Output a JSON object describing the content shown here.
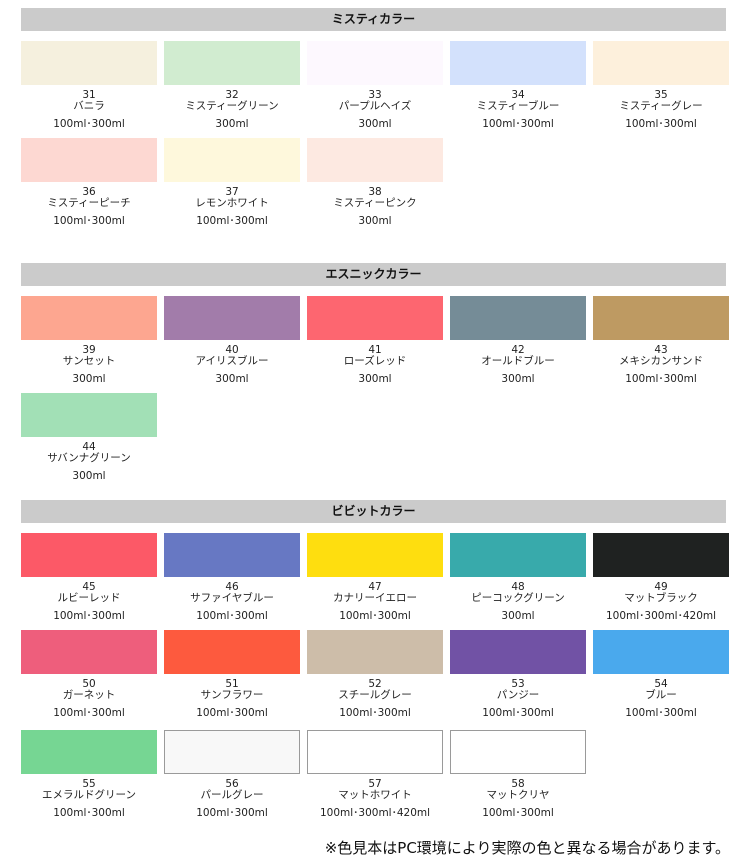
{
  "sections": [
    {
      "title": "ミスティカラー",
      "items": [
        {
          "number": "31",
          "name": "バニラ",
          "sizes": "100ml･300ml",
          "color": "#f5f0de"
        },
        {
          "number": "32",
          "name": "ミスティーグリーン",
          "sizes": "300ml",
          "color": "#d1ecd0"
        },
        {
          "number": "33",
          "name": "パープルヘイズ",
          "sizes": "300ml",
          "color": "#fdf8fe"
        },
        {
          "number": "34",
          "name": "ミスティーブルー",
          "sizes": "100ml･300ml",
          "color": "#d3e1fc"
        },
        {
          "number": "35",
          "name": "ミスティーグレー",
          "sizes": "100ml･300ml",
          "color": "#fdf0dc"
        },
        {
          "number": "36",
          "name": "ミスティーピーチ",
          "sizes": "100ml･300ml",
          "color": "#fdd8d2"
        },
        {
          "number": "37",
          "name": "レモンホワイト",
          "sizes": "100ml･300ml",
          "color": "#fef8dc"
        },
        {
          "number": "38",
          "name": "ミスティーピンク",
          "sizes": "300ml",
          "color": "#fde9e1"
        }
      ]
    },
    {
      "title": "エスニックカラー",
      "items": [
        {
          "number": "39",
          "name": "サンセット",
          "sizes": "300ml",
          "color": "#fda690"
        },
        {
          "number": "40",
          "name": "アイリスブルー",
          "sizes": "300ml",
          "color": "#a27caa"
        },
        {
          "number": "41",
          "name": "ローズレッド",
          "sizes": "300ml",
          "color": "#fd6670"
        },
        {
          "number": "42",
          "name": "オールドブルー",
          "sizes": "300ml",
          "color": "#758c97"
        },
        {
          "number": "43",
          "name": "メキシカンサンド",
          "sizes": "100ml･300ml",
          "color": "#be9a62"
        },
        {
          "number": "44",
          "name": "サバンナグリーン",
          "sizes": "300ml",
          "color": "#a2e0b6"
        }
      ]
    },
    {
      "title": "ビビットカラー",
      "items": [
        {
          "number": "45",
          "name": "ルビーレッド",
          "sizes": "100ml･300ml",
          "color": "#fc5967"
        },
        {
          "number": "46",
          "name": "サファイヤブルー",
          "sizes": "100ml･300ml",
          "color": "#6778c3"
        },
        {
          "number": "47",
          "name": "カナリーイエロー",
          "sizes": "100ml･300ml",
          "color": "#fede0f"
        },
        {
          "number": "48",
          "name": "ピーコックグリーン",
          "sizes": "300ml",
          "color": "#38aaab"
        },
        {
          "number": "49",
          "name": "マットブラック",
          "sizes": "100ml･300ml･420ml",
          "color": "#1f2221"
        },
        {
          "number": "50",
          "name": "ガーネット",
          "sizes": "100ml･300ml",
          "color": "#ee5e7c"
        },
        {
          "number": "51",
          "name": "サンフラワー",
          "sizes": "100ml･300ml",
          "color": "#fd5a3e"
        },
        {
          "number": "52",
          "name": "スチールグレー",
          "sizes": "100ml･300ml",
          "color": "#cdbda9"
        },
        {
          "number": "53",
          "name": "パンジー",
          "sizes": "100ml･300ml",
          "color": "#7152a5"
        },
        {
          "number": "54",
          "name": "ブルー",
          "sizes": "100ml･300ml",
          "color": "#4aa9ed"
        },
        {
          "number": "55",
          "name": "エメラルドグリーン",
          "sizes": "100ml･300ml",
          "color": "#76d693"
        },
        {
          "number": "56",
          "name": "パールグレー",
          "sizes": "100ml･300ml",
          "color": "#f8f8f8",
          "bordered": true
        },
        {
          "number": "57",
          "name": "マットホワイト",
          "sizes": "100ml･300ml･420ml",
          "color": "#ffffff",
          "bordered": true
        },
        {
          "number": "58",
          "name": "マットクリヤ",
          "sizes": "100ml･300ml",
          "color": "#ffffff",
          "bordered": true
        }
      ]
    }
  ],
  "note": "※色見本はPC環境により実際の色と異なる場合があります。"
}
